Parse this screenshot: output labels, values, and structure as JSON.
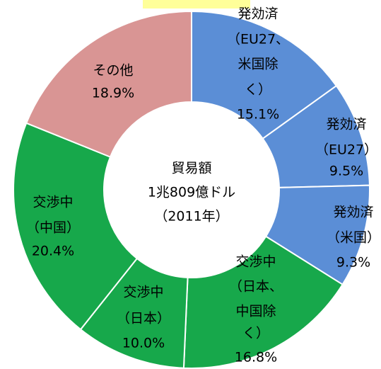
{
  "chart_data": {
    "type": "donut",
    "center_text": [
      "貿易額",
      "1兆809億ドル",
      "（2011年）"
    ],
    "categories": [
      [
        "発効済",
        "（EU27、",
        "米国除",
        "く）"
      ],
      [
        "発効済",
        "（EU27）"
      ],
      [
        "発効済",
        "（米国）"
      ],
      [
        "交渉中",
        "（日本、",
        "中国除",
        "く）"
      ],
      [
        "交渉中",
        "（日本）"
      ],
      [
        "交渉中",
        "（中国）"
      ],
      [
        "その他"
      ]
    ],
    "values": [
      15.1,
      9.5,
      9.3,
      16.8,
      10.0,
      20.4,
      18.9
    ],
    "value_labels": [
      "15.1%",
      "9.5%",
      "9.3%",
      "16.8%",
      "10.0%",
      "20.4%",
      "18.9%"
    ],
    "colors": [
      "#5b8ed6",
      "#5b8ed6",
      "#5b8ed6",
      "#17a84b",
      "#17a84b",
      "#17a84b",
      "#d99594"
    ]
  }
}
